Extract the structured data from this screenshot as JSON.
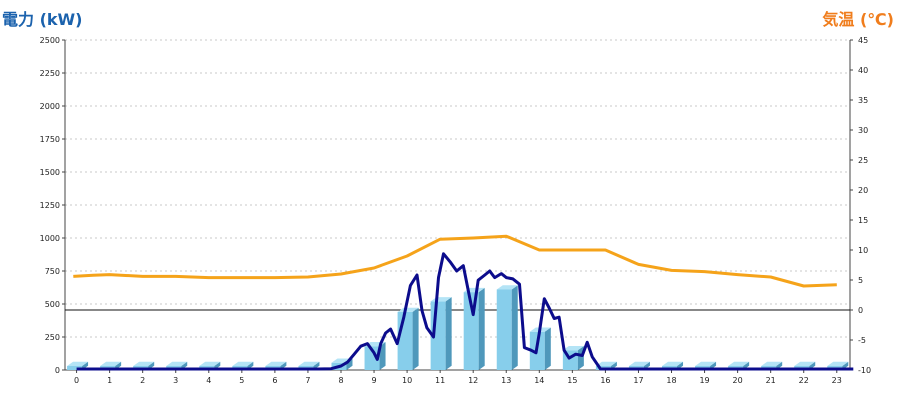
{
  "chart_data": {
    "type": "bar+line",
    "ylabel_left": "電力 (kW)",
    "ylabel_right": "気温 (℃)",
    "x_ticks": [
      "0",
      "1",
      "2",
      "3",
      "4",
      "5",
      "6",
      "7",
      "8",
      "9",
      "10",
      "11",
      "12",
      "13",
      "14",
      "15",
      "16",
      "17",
      "18",
      "19",
      "20",
      "21",
      "22",
      "23"
    ],
    "y_left_ticks": [
      "0",
      "250",
      "500",
      "750",
      "1000",
      "1250",
      "1500",
      "1750",
      "2000",
      "2250",
      "2500"
    ],
    "y_right_ticks": [
      "-10",
      "-5",
      "0",
      "5",
      "10",
      "15",
      "20",
      "25",
      "30",
      "35",
      "40",
      "45"
    ],
    "ylim_left": [
      0,
      2500
    ],
    "ylim_right": [
      -10,
      45
    ],
    "grid": true,
    "colors": {
      "bar": "#87ceeb",
      "bar_side": "#4f98bb",
      "bar_top": "#b4e4f6",
      "power_line": "#0c0c8c",
      "temperature_line": "#f5a31a",
      "left_title": "#1b62ad",
      "right_title": "#f07d1c"
    },
    "series": [
      {
        "kind": "bar",
        "axis": "left",
        "x": [
          0,
          1,
          2,
          3,
          4,
          5,
          6,
          7,
          8,
          9,
          10,
          11,
          12,
          13,
          14,
          15,
          16,
          17,
          18,
          19,
          20,
          21,
          22,
          23
        ],
        "values": [
          0,
          0,
          0,
          0,
          0,
          0,
          0,
          0,
          55,
          180,
          440,
          520,
          590,
          610,
          290,
          150,
          20,
          0,
          0,
          0,
          0,
          0,
          0,
          0
        ]
      },
      {
        "kind": "line",
        "axis": "left",
        "points": [
          [
            0,
            0
          ],
          [
            7.3,
            0
          ],
          [
            7.7,
            10
          ],
          [
            8,
            30
          ],
          [
            8.2,
            60
          ],
          [
            8.4,
            120
          ],
          [
            8.6,
            180
          ],
          [
            8.8,
            200
          ],
          [
            9,
            130
          ],
          [
            9.1,
            80
          ],
          [
            9.2,
            200
          ],
          [
            9.35,
            280
          ],
          [
            9.5,
            310
          ],
          [
            9.7,
            200
          ],
          [
            9.9,
            400
          ],
          [
            10.1,
            640
          ],
          [
            10.3,
            720
          ],
          [
            10.45,
            450
          ],
          [
            10.6,
            320
          ],
          [
            10.8,
            250
          ],
          [
            10.95,
            700
          ],
          [
            11.1,
            880
          ],
          [
            11.3,
            820
          ],
          [
            11.5,
            750
          ],
          [
            11.7,
            790
          ],
          [
            11.9,
            540
          ],
          [
            12,
            420
          ],
          [
            12.15,
            680
          ],
          [
            12.35,
            720
          ],
          [
            12.5,
            750
          ],
          [
            12.65,
            700
          ],
          [
            12.85,
            730
          ],
          [
            13,
            700
          ],
          [
            13.2,
            690
          ],
          [
            13.4,
            650
          ],
          [
            13.55,
            170
          ],
          [
            13.75,
            150
          ],
          [
            13.9,
            130
          ],
          [
            14,
            280
          ],
          [
            14.15,
            540
          ],
          [
            14.3,
            470
          ],
          [
            14.45,
            390
          ],
          [
            14.6,
            400
          ],
          [
            14.75,
            150
          ],
          [
            14.9,
            90
          ],
          [
            15.1,
            120
          ],
          [
            15.3,
            110
          ],
          [
            15.45,
            210
          ],
          [
            15.6,
            100
          ],
          [
            15.85,
            0
          ],
          [
            23.5,
            0
          ]
        ]
      },
      {
        "kind": "line",
        "axis": "right",
        "points": [
          [
            -0.1,
            5.6
          ],
          [
            0.5,
            5.8
          ],
          [
            1,
            5.9
          ],
          [
            2,
            5.6
          ],
          [
            3,
            5.6
          ],
          [
            4,
            5.4
          ],
          [
            5,
            5.4
          ],
          [
            6,
            5.4
          ],
          [
            7,
            5.5
          ],
          [
            8,
            6
          ],
          [
            9,
            7
          ],
          [
            10,
            9
          ],
          [
            11,
            11.8
          ],
          [
            12,
            12
          ],
          [
            13,
            12.3
          ],
          [
            14,
            10
          ],
          [
            15,
            10
          ],
          [
            16,
            10
          ],
          [
            17,
            7.6
          ],
          [
            18,
            6.6
          ],
          [
            19,
            6.4
          ],
          [
            20,
            5.9
          ],
          [
            21,
            5.5
          ],
          [
            22,
            4
          ],
          [
            23,
            4.2
          ]
        ]
      }
    ]
  }
}
